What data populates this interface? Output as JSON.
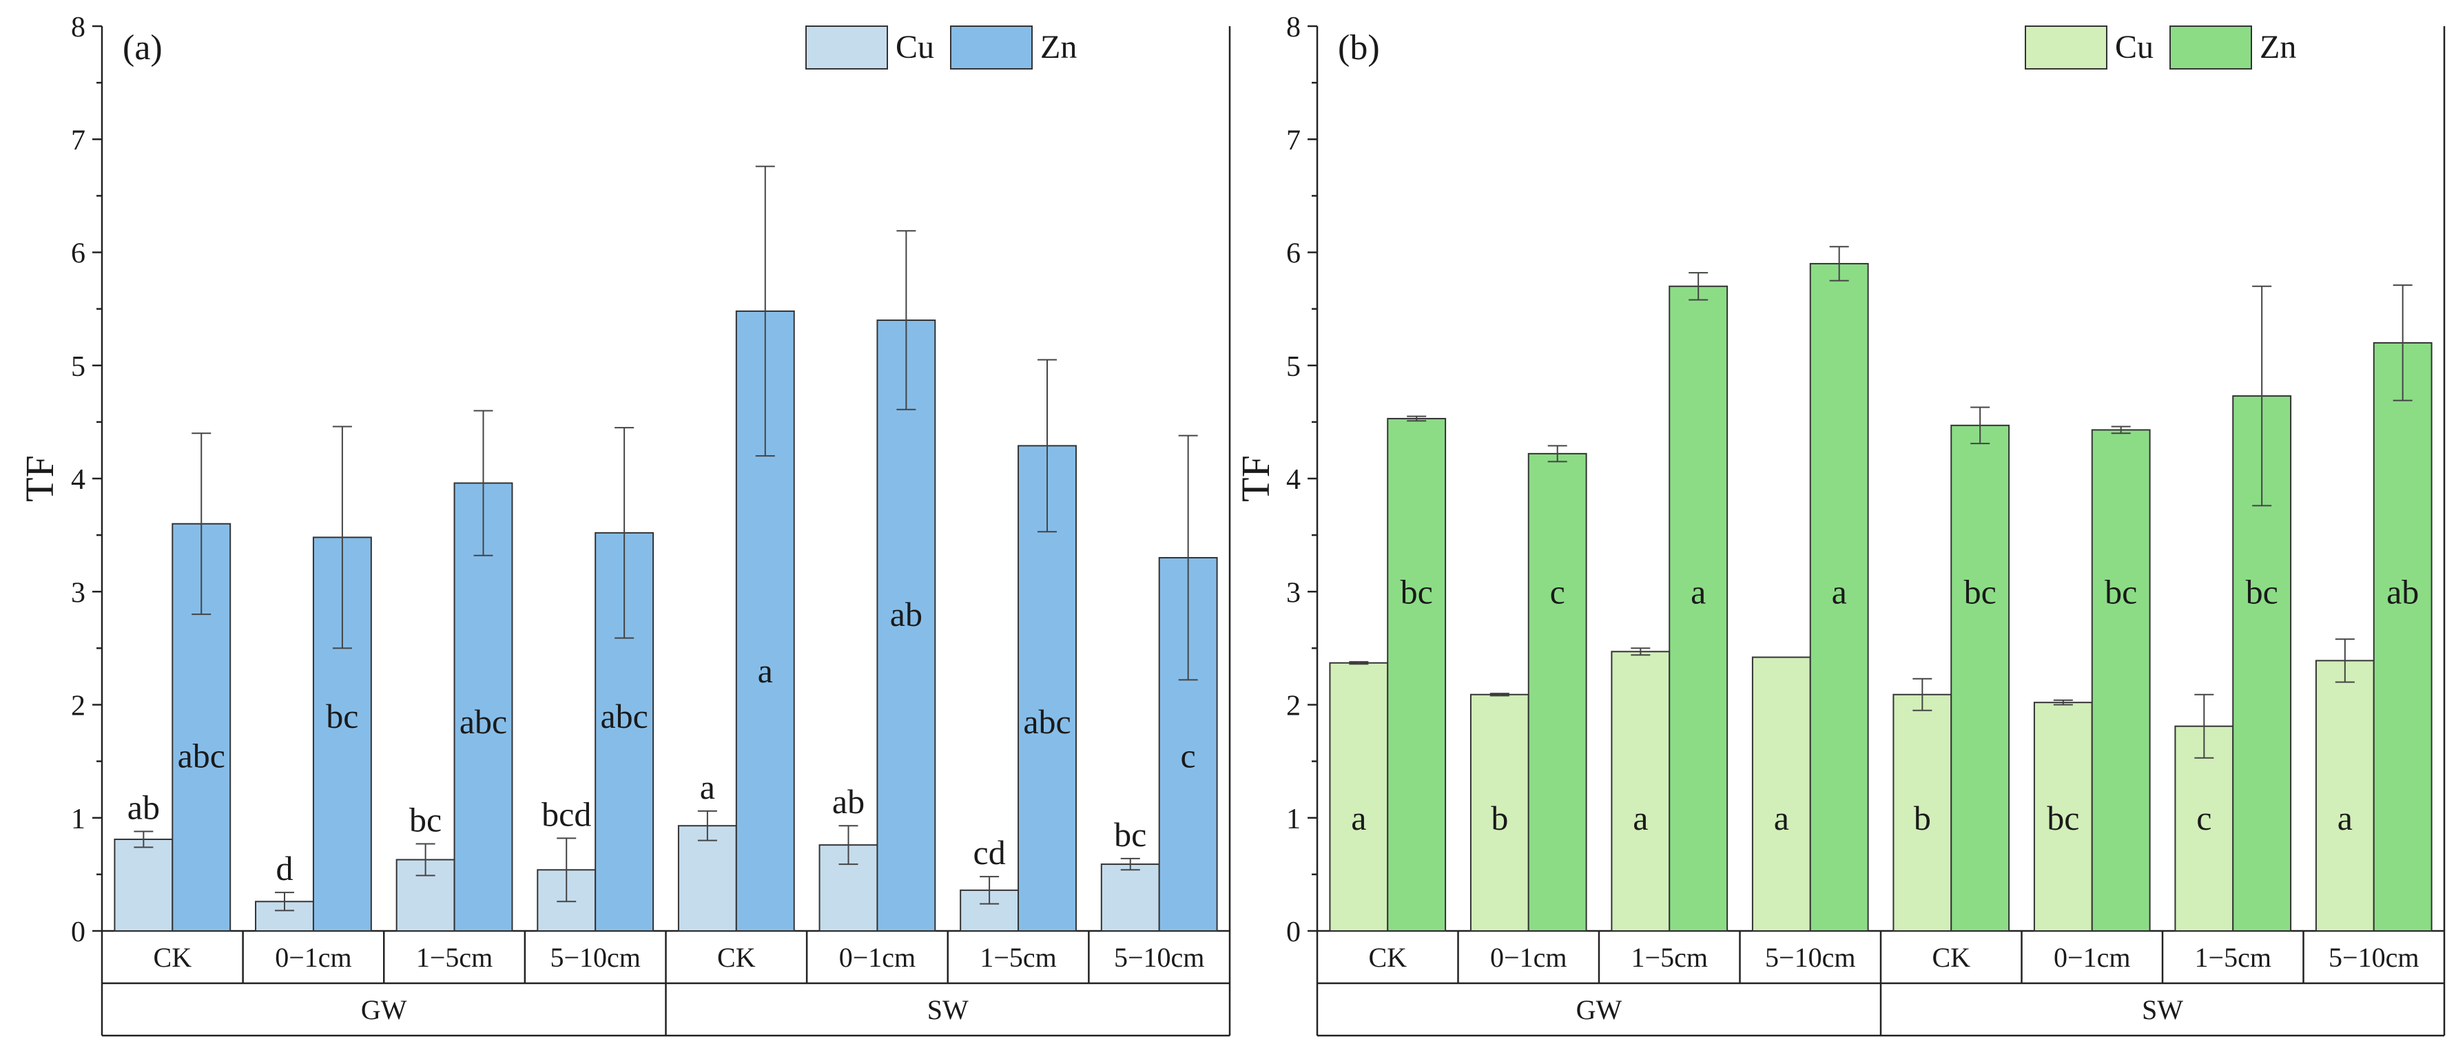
{
  "chart_data": [
    {
      "type": "bar",
      "panel_label": "(a)",
      "ylabel": "TF",
      "ylim": [
        0,
        8
      ],
      "yticks": [
        "0",
        "1",
        "2",
        "3",
        "4",
        "5",
        "6",
        "7",
        "8"
      ],
      "categories": [
        "CK",
        "0−1cm",
        "1−5cm",
        "5−10cm",
        "CK",
        "0−1cm",
        "1−5cm",
        "5−10cm"
      ],
      "groups": [
        "GW",
        "SW"
      ],
      "legend": [
        "Cu",
        "Zn"
      ],
      "colors": {
        "Cu": "#c5dced",
        "Zn": "#86bde8"
      },
      "series": [
        {
          "name": "Cu",
          "values": [
            0.81,
            0.26,
            0.63,
            0.54,
            0.93,
            0.76,
            0.36,
            0.59
          ],
          "errors": [
            0.07,
            0.08,
            0.14,
            0.28,
            0.13,
            0.17,
            0.12,
            0.05
          ],
          "letters": [
            "ab",
            "d",
            "bc",
            "bcd",
            "a",
            "ab",
            "cd",
            "bc"
          ]
        },
        {
          "name": "Zn",
          "values": [
            3.6,
            3.48,
            3.96,
            3.52,
            5.48,
            5.4,
            4.29,
            3.3
          ],
          "errors": [
            0.8,
            0.98,
            0.64,
            0.93,
            1.28,
            0.79,
            0.76,
            1.08
          ],
          "letters": [
            "abc",
            "bc",
            "abc",
            "abc",
            "a",
            "ab",
            "abc",
            "c"
          ]
        }
      ]
    },
    {
      "type": "bar",
      "panel_label": "(b)",
      "ylabel": "TF",
      "ylim": [
        0,
        8
      ],
      "yticks": [
        "0",
        "1",
        "2",
        "3",
        "4",
        "5",
        "6",
        "7",
        "8"
      ],
      "categories": [
        "CK",
        "0−1cm",
        "1−5cm",
        "5−10cm",
        "CK",
        "0−1cm",
        "1−5cm",
        "5−10cm"
      ],
      "groups": [
        "GW",
        "SW"
      ],
      "legend": [
        "Cu",
        "Zn"
      ],
      "colors": {
        "Cu": "#d2eeb9",
        "Zn": "#8cdc86"
      },
      "series": [
        {
          "name": "Cu",
          "values": [
            2.37,
            2.09,
            2.47,
            2.42,
            2.09,
            2.02,
            1.81,
            2.39
          ],
          "errors": [
            0.01,
            0.01,
            0.03,
            0.0,
            0.14,
            0.02,
            0.28,
            0.19
          ],
          "letters": [
            "a",
            "b",
            "a",
            "a",
            "b",
            "bc",
            "c",
            "a"
          ]
        },
        {
          "name": "Zn",
          "values": [
            4.53,
            4.22,
            5.7,
            5.9,
            4.47,
            4.43,
            4.73,
            5.2
          ],
          "errors": [
            0.02,
            0.07,
            0.12,
            0.15,
            0.16,
            0.03,
            0.97,
            0.51
          ],
          "letters": [
            "bc",
            "c",
            "a",
            "a",
            "bc",
            "bc",
            "bc",
            "ab"
          ]
        }
      ]
    }
  ]
}
